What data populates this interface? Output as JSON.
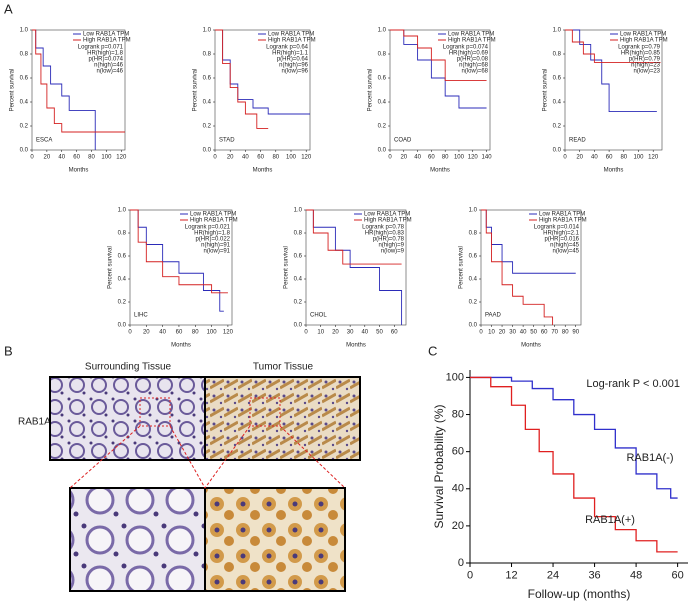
{
  "labels": {
    "panel_a": "A",
    "panel_b": "B",
    "panel_c": "C",
    "surrounding": "Surrounding Tissue",
    "tumor": "Tumor Tissue",
    "marker": "RAB1A"
  },
  "chart_data": [
    {
      "type": "line",
      "annotation": "ESCA",
      "stats": [
        "Logrank p=0.071",
        "HR(high)=1.8",
        "p(HR)=0.074",
        "n(high)=46",
        "n(low)=46"
      ],
      "xlabel": "Months",
      "ylabel": "Percent survival",
      "xlim": [
        0,
        125
      ],
      "xticks": [
        0,
        20,
        40,
        60,
        80,
        100,
        120
      ],
      "ylim": [
        0,
        1
      ],
      "yticks": [
        {
          "value": 0,
          "label": "0.0"
        },
        0.2,
        0.4,
        0.6,
        0.8,
        {
          "value": 1,
          "label": "1.0"
        }
      ],
      "series": [
        {
          "name": "Low RAB1A TPM",
          "color": "#2b2bb8",
          "x": [
            0,
            5,
            5,
            15,
            15,
            25,
            25,
            40,
            40,
            50,
            50,
            85,
            85
          ],
          "values": [
            1,
            1,
            0.85,
            0.85,
            0.7,
            0.7,
            0.55,
            0.55,
            0.45,
            0.45,
            0.33,
            0.33,
            0
          ]
        },
        {
          "name": "High RAB1A TPM",
          "color": "#d42020",
          "x": [
            0,
            5,
            5,
            12,
            12,
            20,
            20,
            30,
            30,
            40,
            40,
            125
          ],
          "values": [
            1,
            1,
            0.8,
            0.8,
            0.55,
            0.55,
            0.35,
            0.35,
            0.22,
            0.22,
            0.15,
            0.15
          ]
        }
      ]
    },
    {
      "type": "line",
      "annotation": "STAD",
      "stats": [
        "Logrank p=0.64",
        "HR(high)=1.1",
        "p(HR)=0.64",
        "n(high)=96",
        "n(low)=96"
      ],
      "xlabel": "Months",
      "ylabel": "Percent survival",
      "xlim": [
        0,
        125
      ],
      "xticks": [
        0,
        20,
        40,
        60,
        80,
        100,
        120
      ],
      "ylim": [
        0,
        1
      ],
      "yticks": [
        {
          "value": 0,
          "label": "0.0"
        },
        0.2,
        0.4,
        0.6,
        0.8,
        {
          "value": 1,
          "label": "1.0"
        }
      ],
      "series": [
        {
          "name": "Low RAB1A TPM",
          "color": "#2b2bb8",
          "x": [
            0,
            10,
            10,
            20,
            20,
            30,
            30,
            50,
            50,
            70,
            70,
            125
          ],
          "values": [
            1,
            1,
            0.75,
            0.75,
            0.55,
            0.55,
            0.42,
            0.42,
            0.35,
            0.35,
            0.3,
            0.3
          ]
        },
        {
          "name": "High RAB1A TPM",
          "color": "#d42020",
          "x": [
            0,
            10,
            10,
            20,
            20,
            30,
            30,
            40,
            40,
            55,
            55,
            70
          ],
          "values": [
            1,
            1,
            0.72,
            0.72,
            0.52,
            0.52,
            0.4,
            0.4,
            0.3,
            0.3,
            0.18,
            0.18
          ]
        }
      ]
    },
    {
      "type": "line",
      "annotation": "COAD",
      "stats": [
        "Logrank p=0.074",
        "HR(high)=0.69",
        "p(HR)=0.08",
        "n(high)=68",
        "n(low)=68"
      ],
      "xlabel": "Months",
      "ylabel": "Percent survival",
      "xlim": [
        0,
        145
      ],
      "xticks": [
        0,
        20,
        40,
        60,
        80,
        100,
        120,
        140
      ],
      "ylim": [
        0,
        1
      ],
      "yticks": [
        {
          "value": 0,
          "label": "0.0"
        },
        0.2,
        0.4,
        0.6,
        0.8,
        {
          "value": 1,
          "label": "1.0"
        }
      ],
      "series": [
        {
          "name": "Low RAB1A TPM",
          "color": "#2b2bb8",
          "x": [
            0,
            20,
            20,
            40,
            40,
            60,
            60,
            80,
            80,
            100,
            100,
            140
          ],
          "values": [
            1,
            1,
            0.88,
            0.88,
            0.75,
            0.75,
            0.6,
            0.6,
            0.45,
            0.45,
            0.35,
            0.35
          ]
        },
        {
          "name": "High RAB1A TPM",
          "color": "#d42020",
          "x": [
            0,
            20,
            20,
            40,
            40,
            60,
            60,
            80,
            80,
            140
          ],
          "values": [
            1,
            1,
            0.95,
            0.95,
            0.85,
            0.85,
            0.75,
            0.75,
            0.58,
            0.58
          ]
        }
      ]
    },
    {
      "type": "line",
      "annotation": "READ",
      "stats": [
        "Logrank p=0.79",
        "HR(high)=0.85",
        "p(HR)=0.79",
        "n(high)=23",
        "n(low)=23"
      ],
      "xlabel": "Months",
      "ylabel": "Percent survival",
      "xlim": [
        0,
        132
      ],
      "xticks": [
        0,
        20,
        40,
        60,
        80,
        100,
        120
      ],
      "ylim": [
        0,
        1
      ],
      "yticks": [
        {
          "value": 0,
          "label": "0.0"
        },
        0.2,
        0.4,
        0.6,
        0.8,
        {
          "value": 1,
          "label": "1.0"
        }
      ],
      "series": [
        {
          "name": "Low RAB1A TPM",
          "color": "#2b2bb8",
          "x": [
            0,
            20,
            20,
            35,
            35,
            50,
            50,
            60,
            60,
            125
          ],
          "values": [
            1,
            1,
            0.88,
            0.88,
            0.75,
            0.75,
            0.55,
            0.55,
            0.32,
            0.32
          ]
        },
        {
          "name": "High RAB1A TPM",
          "color": "#d42020",
          "x": [
            0,
            10,
            10,
            25,
            25,
            40,
            40,
            130
          ],
          "values": [
            1,
            1,
            0.9,
            0.9,
            0.8,
            0.8,
            0.73,
            0.73
          ]
        }
      ]
    },
    {
      "type": "line",
      "annotation": "LIHC",
      "stats": [
        "Logrank p=0.021",
        "HR(high)=1.8",
        "p(HR)=0.022",
        "n(high)=91",
        "n(low)=91"
      ],
      "xlabel": "Months",
      "ylabel": "Percent survival",
      "xlim": [
        0,
        125
      ],
      "xticks": [
        0,
        20,
        40,
        60,
        80,
        100,
        120
      ],
      "ylim": [
        0,
        1
      ],
      "yticks": [
        {
          "value": 0,
          "label": "0.0"
        },
        0.2,
        0.4,
        0.6,
        0.8,
        {
          "value": 1,
          "label": "1.0"
        }
      ],
      "series": [
        {
          "name": "Low RAB1A TPM",
          "color": "#2b2bb8",
          "x": [
            0,
            10,
            10,
            20,
            20,
            40,
            40,
            60,
            60,
            90,
            90,
            110,
            110,
            115
          ],
          "values": [
            1,
            1,
            0.85,
            0.85,
            0.7,
            0.7,
            0.55,
            0.55,
            0.45,
            0.45,
            0.3,
            0.3,
            0.12,
            0.12
          ]
        },
        {
          "name": "High RAB1A TPM",
          "color": "#d42020",
          "x": [
            0,
            10,
            10,
            20,
            20,
            40,
            40,
            60,
            60,
            100,
            100,
            120
          ],
          "values": [
            1,
            1,
            0.72,
            0.72,
            0.55,
            0.55,
            0.42,
            0.42,
            0.35,
            0.35,
            0.28,
            0.28
          ]
        }
      ]
    },
    {
      "type": "line",
      "annotation": "CHOL",
      "stats": [
        "Logrank p=0.78",
        "HR(high)=0.83",
        "p(HR)=0.78",
        "n(high)=9",
        "n(low)=9"
      ],
      "xlabel": "Months",
      "ylabel": "Percent survival",
      "xlim": [
        0,
        68
      ],
      "xticks": [
        0,
        10,
        20,
        30,
        40,
        50,
        60
      ],
      "ylim": [
        0,
        1
      ],
      "yticks": [
        {
          "value": 0,
          "label": "0.0"
        },
        0.2,
        0.4,
        0.6,
        0.8,
        {
          "value": 1,
          "label": "1.0"
        }
      ],
      "series": [
        {
          "name": "Low RAB1A TPM",
          "color": "#2b2bb8",
          "x": [
            0,
            5,
            5,
            20,
            20,
            30,
            30,
            50,
            50,
            65,
            65
          ],
          "values": [
            1,
            1,
            0.85,
            0.85,
            0.65,
            0.65,
            0.5,
            0.5,
            0.3,
            0.3,
            0
          ]
        },
        {
          "name": "High RAB1A TPM",
          "color": "#d42020",
          "x": [
            0,
            5,
            5,
            15,
            15,
            25,
            25,
            65
          ],
          "values": [
            1,
            1,
            0.8,
            0.8,
            0.65,
            0.65,
            0.53,
            0.53
          ]
        }
      ]
    },
    {
      "type": "line",
      "annotation": "PAAD",
      "stats": [
        "Logrank p=0.014",
        "HR(high)=2.1",
        "p(HR)=0.016",
        "n(high)=45",
        "n(low)=45"
      ],
      "xlabel": "Months",
      "ylabel": "Percent survival",
      "xlim": [
        0,
        95
      ],
      "xticks": [
        0,
        10,
        20,
        30,
        40,
        50,
        60,
        70,
        80,
        90
      ],
      "ylim": [
        0,
        1
      ],
      "yticks": [
        {
          "value": 0,
          "label": "0.0"
        },
        0.2,
        0.4,
        0.6,
        0.8,
        {
          "value": 1,
          "label": "1.0"
        }
      ],
      "series": [
        {
          "name": "Low RAB1A TPM",
          "color": "#2b2bb8",
          "x": [
            0,
            5,
            5,
            10,
            10,
            20,
            20,
            30,
            30,
            90
          ],
          "values": [
            1,
            1,
            0.85,
            0.85,
            0.7,
            0.7,
            0.55,
            0.55,
            0.45,
            0.45
          ]
        },
        {
          "name": "High RAB1A TPM",
          "color": "#d42020",
          "x": [
            0,
            5,
            5,
            10,
            10,
            20,
            20,
            30,
            30,
            40,
            40,
            60,
            60,
            68,
            68
          ],
          "values": [
            1,
            1,
            0.8,
            0.8,
            0.55,
            0.55,
            0.35,
            0.35,
            0.25,
            0.25,
            0.18,
            0.18,
            0.07,
            0.07,
            0
          ]
        }
      ]
    },
    {
      "type": "line",
      "annotation": "Log-rank P < 0.001",
      "xlabel": "Follow-up (months)",
      "ylabel": "Survival Probability (%)",
      "xlim": [
        0,
        63
      ],
      "xticks": [
        0,
        12,
        24,
        36,
        48,
        60
      ],
      "ylim": [
        0,
        104
      ],
      "yticks": [
        0,
        20,
        40,
        60,
        80,
        100
      ],
      "series": [
        {
          "name": "RAB1A(-)",
          "color": "#3030cc",
          "x": [
            0,
            12,
            12,
            18,
            18,
            24,
            24,
            30,
            30,
            36,
            36,
            42,
            42,
            48,
            48,
            54,
            54,
            58,
            58,
            60
          ],
          "values": [
            100,
            100,
            98,
            98,
            94,
            94,
            88,
            88,
            80,
            80,
            72,
            72,
            62,
            62,
            48,
            48,
            40,
            40,
            35,
            35
          ]
        },
        {
          "name": "RAB1A(+)",
          "color": "#e02020",
          "x": [
            0,
            6,
            6,
            12,
            12,
            16,
            16,
            20,
            20,
            24,
            24,
            30,
            30,
            36,
            36,
            42,
            42,
            48,
            48,
            54,
            54,
            60
          ],
          "values": [
            100,
            100,
            95,
            95,
            85,
            85,
            72,
            72,
            60,
            60,
            48,
            48,
            35,
            35,
            25,
            25,
            18,
            18,
            12,
            12,
            6,
            6
          ]
        }
      ]
    }
  ]
}
